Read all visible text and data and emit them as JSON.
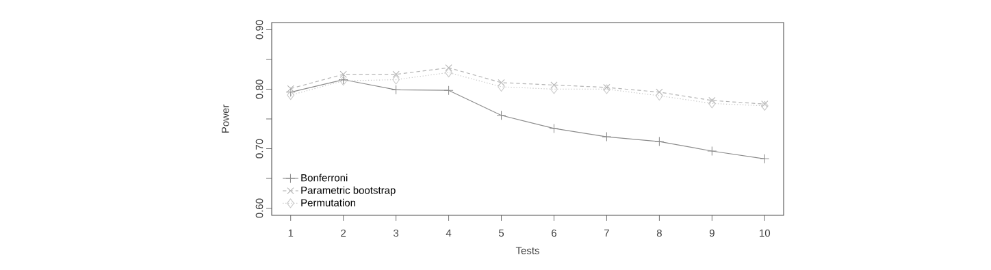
{
  "chart_data": {
    "type": "line",
    "xlabel": "Tests",
    "ylabel": "Power",
    "x": [
      1,
      2,
      3,
      4,
      5,
      6,
      7,
      8,
      9,
      10
    ],
    "series": [
      {
        "name": "Bonferroni",
        "color": "#8c8c8c",
        "marker": "plus",
        "line_style": "solid",
        "values": [
          0.795,
          0.816,
          0.799,
          0.798,
          0.756,
          0.734,
          0.72,
          0.712,
          0.696,
          0.683
        ]
      },
      {
        "name": "Parametric bootstrap",
        "color": "#b4b4b4",
        "marker": "cross",
        "line_style": "dashed",
        "values": [
          0.801,
          0.825,
          0.825,
          0.836,
          0.811,
          0.807,
          0.803,
          0.795,
          0.781,
          0.775
        ]
      },
      {
        "name": "Permutation",
        "color": "#c8c8c8",
        "marker": "diamond",
        "line_style": "dotted",
        "values": [
          0.79,
          0.814,
          0.816,
          0.828,
          0.804,
          0.8,
          0.8,
          0.789,
          0.776,
          0.772
        ]
      }
    ],
    "xlim": [
      0.64,
      10.36
    ],
    "ylim": [
      0.588,
      0.912
    ],
    "xticks": [
      1,
      2,
      3,
      4,
      5,
      6,
      7,
      8,
      9,
      10
    ],
    "yticks": [
      {
        "value": 0.6,
        "label": "0.60"
      },
      {
        "value": 0.65,
        "label": null
      },
      {
        "value": 0.7,
        "label": "0.70"
      },
      {
        "value": 0.75,
        "label": null
      },
      {
        "value": 0.8,
        "label": "0.80"
      },
      {
        "value": 0.85,
        "label": null
      },
      {
        "value": 0.9,
        "label": "0.90"
      }
    ],
    "grid": false,
    "legend": "bottom left"
  }
}
